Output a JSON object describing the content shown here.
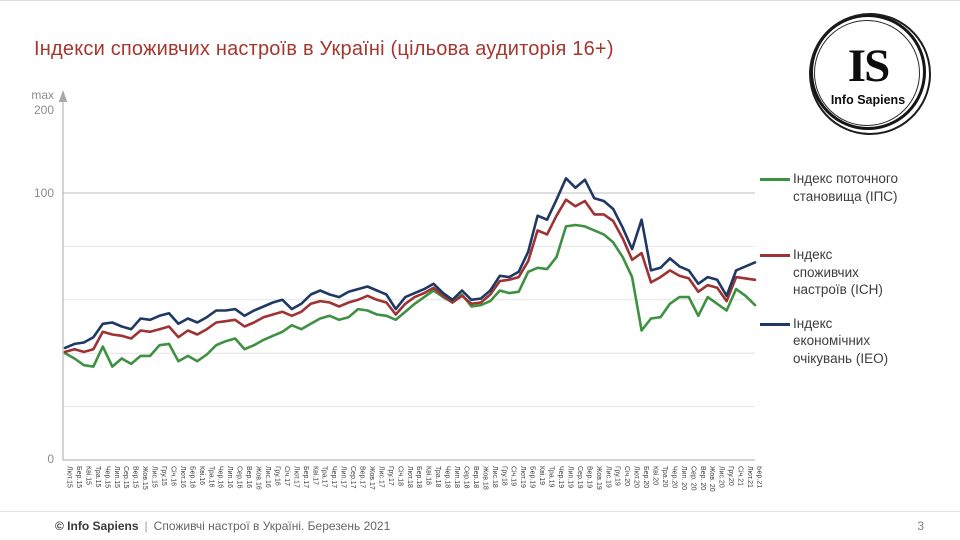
{
  "slide": {
    "title": "Індекси споживчих настроїв в Україні (цільова аудиторія 16+)",
    "page_number": "3",
    "footer": {
      "brand": "© Info Sapiens",
      "separator": "|",
      "text": "Споживчі настрої в Україні. Березень 2021"
    },
    "logo": {
      "monogram": "IS",
      "name": "Info Sapiens"
    }
  },
  "axis": {
    "max_label": "max",
    "max_value_label": "200",
    "mid_label": "100",
    "zero_label": "0"
  },
  "colors": {
    "title": "#A6372F",
    "ipc_green": "#3E9142",
    "ich_red": "#9E3234",
    "ieo_blue": "#1F3864",
    "grid_light": "#E4E4E4",
    "grid_major": "#BDBDBD",
    "axis": "#A8A8A8",
    "axis_label": "#8C8C8C",
    "tick_label": "#3F3F3F"
  },
  "legend": [
    {
      "key": "ipc",
      "color": "#3E9142",
      "lines": [
        "Індекс поточного",
        "становища (ІПС)"
      ]
    },
    {
      "key": "ich",
      "color": "#9E3234",
      "lines": [
        "Індекс",
        "споживчих",
        "настроїв (ІСН)"
      ]
    },
    {
      "key": "ieo",
      "color": "#1F3864",
      "lines": [
        "Індекс",
        "економічних",
        "очікувань (ІЕО)"
      ]
    }
  ],
  "chart_data": {
    "type": "line",
    "title": "Індекси споживчих настроїв в Україні (цільова аудиторія 16+)",
    "xlabel": "",
    "ylabel": "",
    "ylim": [
      0,
      200
    ],
    "gridlines": [
      20,
      40,
      60,
      80,
      100
    ],
    "grid": true,
    "legend_position": "right",
    "x": [
      "Лют.15",
      "Бер.15",
      "Кві.15",
      "Тра.15",
      "Чер.15",
      "Лип.15",
      "Сер.15",
      "Вер.15",
      "Жов.15",
      "Лис.15",
      "Гру.15",
      "Січ.16",
      "Лют.16",
      "Бер.16",
      "Кві.16",
      "Тра.16",
      "Чер.16",
      "Лип.16",
      "Сер.16",
      "Вер.16",
      "Жов.16",
      "Лис.16",
      "Гру.16",
      "Січ.17",
      "Лют.17",
      "Бер.17",
      "Кві.17",
      "Тра.17",
      "Чер.17",
      "Лип.17",
      "Сер.17",
      "Вер.17",
      "Жов.17",
      "Лис.17",
      "Гру.17",
      "Січ.18",
      "Лют.18",
      "Бер.18",
      "Кві.18",
      "Тра.18",
      "Чер.18",
      "Лип.18",
      "Сер.18",
      "Вер.18",
      "Жов.18",
      "Лис.18",
      "Гру.18",
      "Січ.19",
      "Лют.19",
      "Бер.19",
      "Кві.19",
      "Тра.19",
      "Чер.19",
      "Лип.19",
      "Сер.19",
      "Вер.19",
      "Жов.19",
      "Лис.19",
      "Гру.19",
      "Січ.20",
      "Лют.20",
      "Бер.20",
      "Кві.20",
      "Тра.20",
      "Чер.20",
      "Лип. 20",
      "Сер. 20",
      "Вер. 20",
      "Жов. 20",
      "Лис.20",
      "Гру.20",
      "Січ.21",
      "Лют.21",
      "Бер.21"
    ],
    "series": [
      {
        "name": "Індекс поточного становища (ІПС)",
        "color": "#3E9142",
        "values": [
          40,
          38,
          35.5,
          35,
          42.5,
          35,
          38,
          36,
          39,
          39,
          43,
          43.5,
          37,
          39,
          37,
          39.5,
          43,
          44.5,
          45.5,
          41.5,
          43,
          45,
          46.5,
          48,
          50.5,
          49,
          51,
          53,
          54,
          52.5,
          53.5,
          56.5,
          56,
          54.5,
          54,
          52.5,
          55.5,
          58.5,
          61,
          63.5,
          61,
          59,
          62,
          57.5,
          58,
          59.5,
          63.5,
          62.5,
          63,
          70.5,
          72,
          71.5,
          76,
          87.5,
          88,
          87.5,
          86,
          84.5,
          81.5,
          76,
          68.5,
          48.5,
          53,
          53.5,
          58.5,
          61,
          61,
          54,
          61,
          58.5,
          56,
          64,
          61.5,
          58
        ]
      },
      {
        "name": "Індекс споживчих настроїв (ІСН)",
        "color": "#9E3234",
        "values": [
          40.5,
          41.5,
          40.5,
          41.5,
          48,
          47,
          46.5,
          45.5,
          48.5,
          48,
          49,
          50,
          46,
          48.5,
          47,
          49,
          51.5,
          52,
          52.5,
          50,
          51.5,
          53.5,
          54.5,
          55.5,
          54,
          55.5,
          58.5,
          59.5,
          59,
          57.5,
          59,
          60,
          61.5,
          60,
          59,
          54.5,
          58.5,
          61,
          62.5,
          64.5,
          61.5,
          59,
          61.5,
          58.5,
          59,
          62,
          67,
          67.5,
          68.5,
          74.5,
          86,
          84.5,
          91.5,
          97.5,
          95,
          97,
          92,
          92,
          89.5,
          83,
          75,
          77.5,
          66.5,
          68.5,
          71,
          69,
          68,
          63,
          65.5,
          64.5,
          59.5,
          68.5,
          68,
          67.5
        ]
      },
      {
        "name": "Індекс економічних очікувань (ІЕО)",
        "color": "#1F3864",
        "values": [
          42,
          43.5,
          44,
          46,
          51,
          51.5,
          50,
          49,
          53,
          52.5,
          54,
          55,
          51,
          53,
          51.5,
          53.5,
          56,
          56,
          56.5,
          54,
          56,
          57.5,
          59,
          60,
          56.5,
          58.5,
          62,
          63.5,
          62,
          61,
          63,
          64,
          65,
          63.5,
          62,
          56.5,
          61,
          62.5,
          64,
          66,
          62.5,
          60,
          63.5,
          60,
          60.5,
          63.5,
          69,
          68.5,
          70.5,
          78,
          91.5,
          90,
          97.5,
          105.5,
          102,
          105,
          98,
          97,
          94,
          87,
          79,
          90,
          71,
          72,
          75.5,
          72.5,
          71,
          66,
          68.5,
          67.5,
          61.5,
          71,
          72.5,
          74
        ]
      }
    ]
  }
}
